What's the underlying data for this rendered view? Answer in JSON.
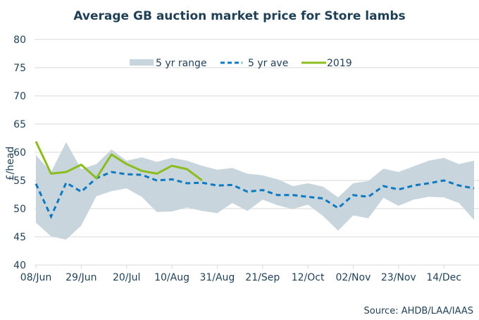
{
  "chart_data": {
    "type": "line",
    "title": "Average GB auction market price for Store lambs",
    "xlabel": "",
    "ylabel": "£/head",
    "ylim": [
      40,
      80
    ],
    "yticks": [
      40,
      45,
      50,
      55,
      60,
      65,
      70,
      75,
      80
    ],
    "grid": true,
    "legend_position": "top-center",
    "x_tick_labels": [
      "08/Jun",
      "29/Jun",
      "20/Jul",
      "10/Aug",
      "31/Aug",
      "21/Sep",
      "12/Oct",
      "02/Nov",
      "23/Nov",
      "14/Dec"
    ],
    "x_tick_every": 3,
    "x_count": 30,
    "source": "Source: AHDB/LAA/IAAS",
    "series": [
      {
        "name": "5 yr range",
        "kind": "band",
        "color": "#c9d5dc",
        "upper": [
          59.5,
          56.5,
          61.8,
          57.0,
          57.9,
          60.5,
          58.5,
          59.1,
          58.3,
          59.0,
          58.5,
          57.6,
          56.9,
          57.2,
          56.2,
          55.9,
          55.2,
          54.0,
          54.5,
          53.9,
          52.0,
          54.5,
          54.9,
          57.1,
          56.5,
          57.5,
          58.5,
          59.0,
          57.9,
          58.5
        ],
        "lower": [
          47.5,
          45.1,
          44.5,
          47.0,
          52.2,
          53.1,
          53.6,
          52.1,
          49.4,
          49.5,
          50.2,
          49.6,
          49.2,
          51.0,
          49.6,
          51.6,
          50.6,
          49.9,
          50.7,
          48.7,
          46.1,
          48.8,
          48.3,
          51.9,
          50.5,
          51.6,
          52.1,
          52.0,
          51.0,
          48.0
        ]
      },
      {
        "name": "5 yr ave",
        "kind": "dashed-line",
        "color": "#0b7ac2",
        "values": [
          54.4,
          48.6,
          54.6,
          53.0,
          55.4,
          56.5,
          56.1,
          56.0,
          55.0,
          55.2,
          54.5,
          54.6,
          54.1,
          54.2,
          53.0,
          53.3,
          52.4,
          52.4,
          52.1,
          51.8,
          50.1,
          52.4,
          52.1,
          54.0,
          53.4,
          54.1,
          54.5,
          55.0,
          54.1,
          53.6
        ]
      },
      {
        "name": "2019",
        "kind": "line",
        "color": "#8cbd1e",
        "values": [
          61.9,
          56.2,
          56.5,
          57.8,
          55.4,
          59.6,
          57.9,
          56.7,
          56.2,
          57.6,
          57.0,
          55.0
        ]
      }
    ]
  }
}
